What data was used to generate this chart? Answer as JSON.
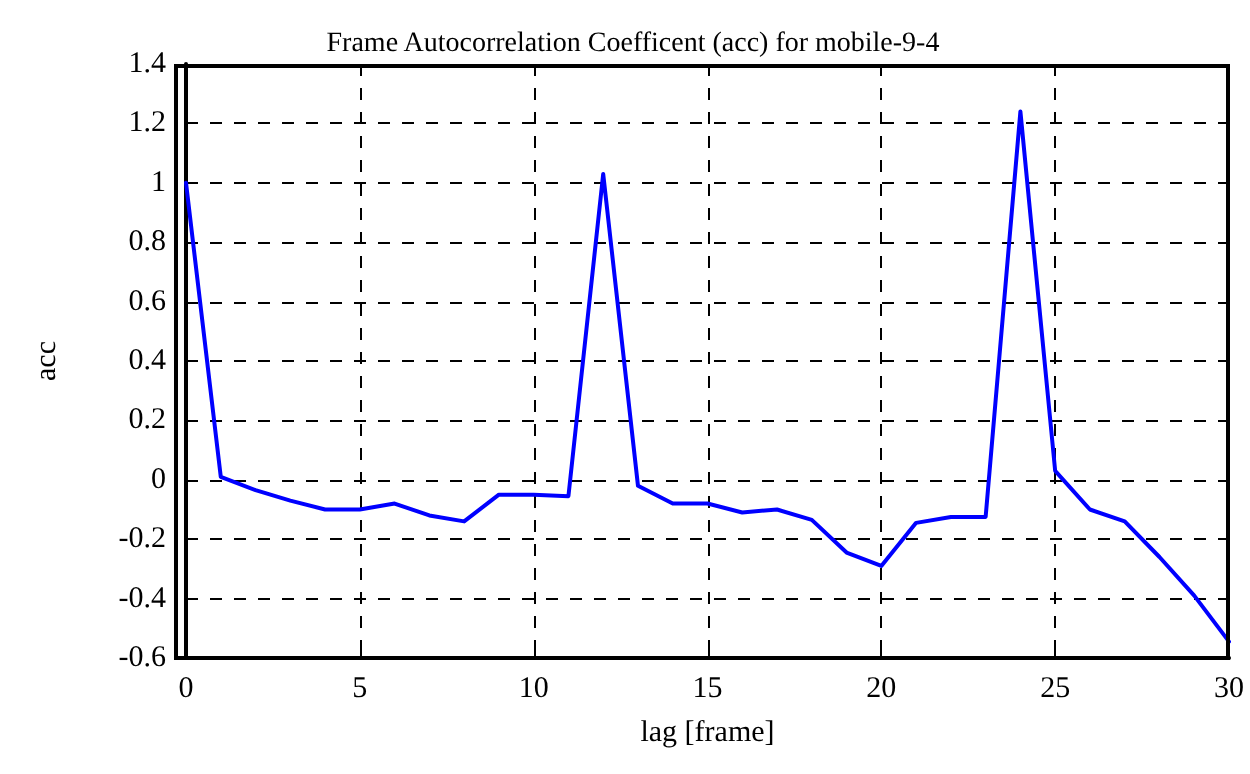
{
  "chart_data": {
    "type": "line",
    "title": "Frame Autocorrelation Coefficent (acc) for mobile-9-4",
    "xlabel": "lag [frame]",
    "ylabel": "acc",
    "x": [
      0,
      1,
      2,
      3,
      4,
      5,
      6,
      7,
      8,
      9,
      10,
      11,
      12,
      13,
      14,
      15,
      16,
      17,
      18,
      19,
      20,
      21,
      22,
      23,
      24,
      25,
      26,
      27,
      28,
      29,
      30
    ],
    "series": [
      {
        "color": "#0000ff",
        "values": [
          1.0,
          0.01,
          -0.035,
          -0.07,
          -0.1,
          -0.1,
          -0.08,
          -0.12,
          -0.14,
          -0.05,
          -0.05,
          -0.055,
          1.03,
          -0.02,
          -0.08,
          -0.08,
          -0.11,
          -0.1,
          -0.135,
          -0.245,
          -0.29,
          -0.145,
          -0.125,
          -0.125,
          1.24,
          0.03,
          -0.1,
          -0.14,
          -0.26,
          -0.39,
          -0.545
        ]
      }
    ],
    "xlim": [
      0,
      30
    ],
    "xticks": [
      0,
      5,
      10,
      15,
      20,
      25,
      30
    ],
    "ylim": [
      -0.6,
      1.4
    ],
    "yticks": [
      -0.6,
      -0.4,
      -0.2,
      0,
      0.2,
      0.4,
      0.6,
      0.8,
      1,
      1.2,
      1.4
    ],
    "grid": true,
    "marker": "none",
    "line_style": "solid"
  }
}
